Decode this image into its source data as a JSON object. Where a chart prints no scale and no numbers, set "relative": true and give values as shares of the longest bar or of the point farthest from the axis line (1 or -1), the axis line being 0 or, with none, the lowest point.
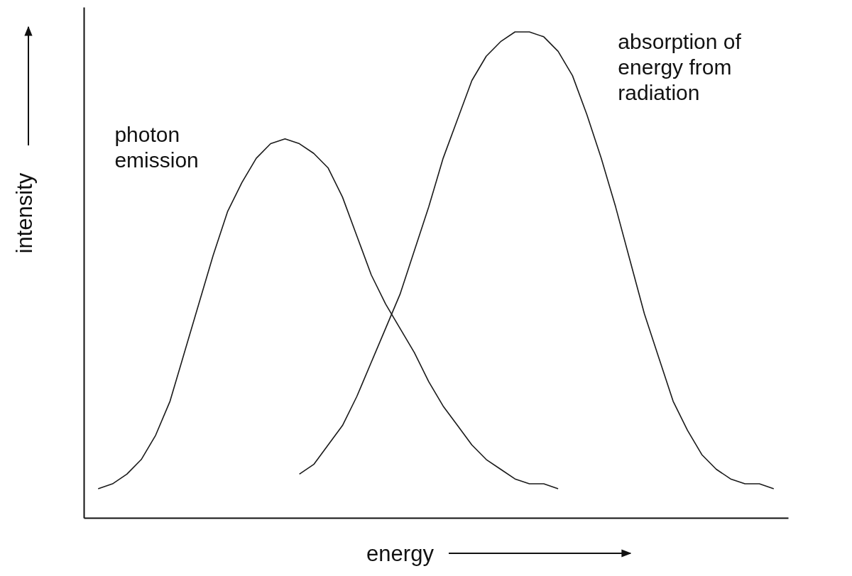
{
  "chart_data": {
    "type": "line",
    "xlabel": "energy",
    "ylabel": "intensity",
    "relative": true,
    "grid": false,
    "marker": "none",
    "line_style": "solid",
    "categories": [
      null,
      null,
      null,
      null,
      null,
      null,
      null,
      null,
      null,
      null,
      null,
      null,
      null,
      null,
      null,
      null,
      null,
      null,
      null,
      null,
      null,
      null,
      null,
      null,
      null,
      null,
      null,
      null,
      null,
      null,
      null,
      null,
      null,
      null,
      null,
      null,
      null,
      null,
      null,
      null,
      null,
      null,
      null,
      null,
      null,
      null,
      null,
      null
    ],
    "series": [
      {
        "name": "photon emission",
        "color": "#1a1a1a",
        "values": [
          0.06,
          0.07,
          0.09,
          0.12,
          0.17,
          0.24,
          0.34,
          0.44,
          0.54,
          0.63,
          0.69,
          0.74,
          0.77,
          0.78,
          0.77,
          0.75,
          0.72,
          0.66,
          0.58,
          0.5,
          0.44,
          0.39,
          0.34,
          0.28,
          0.23,
          0.19,
          0.15,
          0.12,
          0.1,
          0.08,
          0.07,
          0.07,
          0.06,
          null,
          null,
          null,
          null,
          null,
          null,
          null,
          null,
          null,
          null,
          null,
          null,
          null,
          null,
          null
        ]
      },
      {
        "name": "absorption of energy from radiation",
        "color": "#1a1a1a",
        "values": [
          null,
          null,
          null,
          null,
          null,
          null,
          null,
          null,
          null,
          null,
          null,
          null,
          null,
          null,
          0.09,
          0.11,
          0.15,
          0.19,
          0.25,
          0.32,
          0.39,
          0.46,
          0.55,
          0.64,
          0.74,
          0.82,
          0.9,
          0.95,
          0.98,
          1.0,
          1,
          0.99,
          0.96,
          0.91,
          0.83,
          0.74,
          0.64,
          0.53,
          0.42,
          0.33,
          0.24,
          0.18,
          0.13,
          0.1,
          0.08,
          0.07,
          0.07,
          0.06
        ]
      }
    ]
  }
}
